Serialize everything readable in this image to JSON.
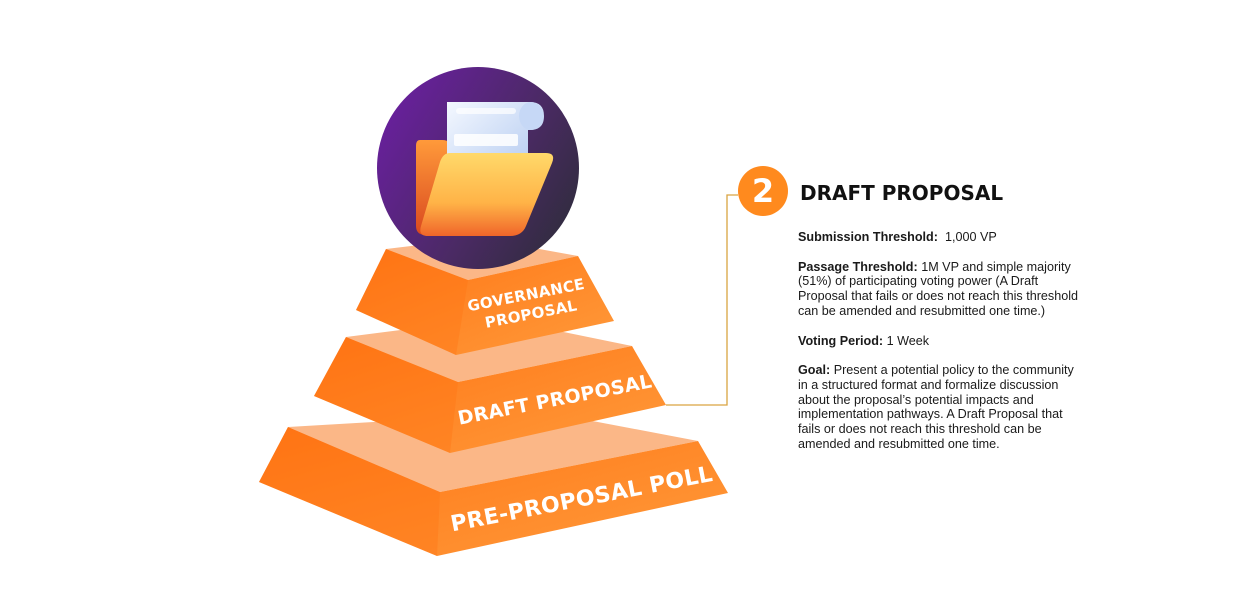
{
  "tiers": [
    {
      "lines": [
        "GOVERNANCE",
        "PROPOSAL"
      ]
    },
    {
      "lines": [
        "DRAFT PROPOSAL"
      ]
    },
    {
      "lines": [
        "PRE-PROPOSAL POLL"
      ]
    }
  ],
  "icon": "document-folder-icon",
  "step": {
    "number": "2",
    "title": "DRAFT PROPOSAL"
  },
  "details": [
    {
      "label": "Submission Threshold:",
      "text": "1,000 VP"
    },
    {
      "label": "Passage Threshold:",
      "text": "1M VP and simple majority (51%) of participating voting power (A Draft Proposal that fails or does not reach this threshold can be amended and resubmitted one time.)"
    },
    {
      "label": "Voting Period:",
      "text": "1 Week"
    },
    {
      "label": "Goal:",
      "text": "Present a potential policy to the community in a structured format and formalize discussion about the proposal’s potential impacts and implementation pathways. A Draft Proposal that fails or does not reach this threshold can be amended and resubmitted one time."
    }
  ],
  "colors": {
    "accent": "#ff8a1e",
    "tier_face": "#ff7d1a",
    "tier_top": "#fbb787",
    "connector": "#d9a441",
    "circle_dark": "#3d2b4a",
    "circle_purple": "#6a1fa0"
  }
}
